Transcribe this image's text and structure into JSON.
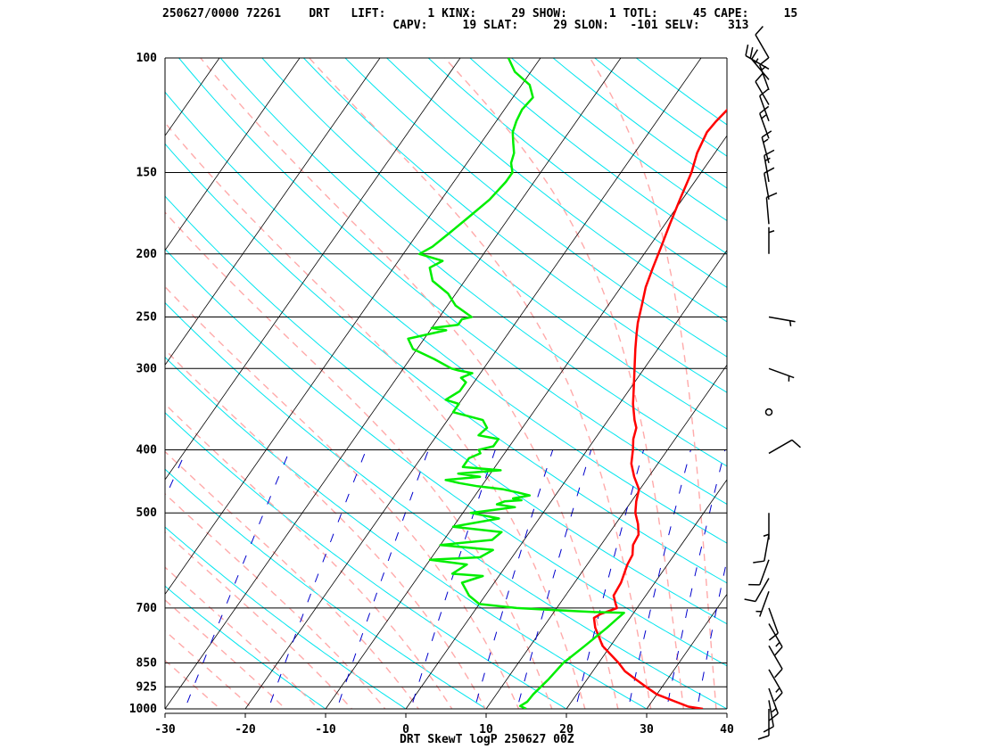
{
  "header": {
    "line1": "250627/0000 72261    DRT   LIFT:      1 KINX:     29 SHOW:      1 TOTL:     45 CAPE:     15",
    "line2": "                                 CAPV:     19 SLAT:     29 SLON:   -101 SELV:    313"
  },
  "footer": "DRT SkewT logP 250627 00Z",
  "chart_data": {
    "type": "line",
    "title": "DRT SkewT logP 250627 00Z",
    "xlabel": "",
    "ylabel": "",
    "x_ticks": [
      -30,
      -20,
      -10,
      0,
      10,
      20,
      30,
      40
    ],
    "xlim": [
      -30,
      40
    ],
    "ylim": [
      1000,
      100
    ],
    "y_scale": "log",
    "pressure_levels": [
      100,
      150,
      200,
      250,
      300,
      400,
      500,
      700,
      850,
      925,
      1000
    ],
    "colors": {
      "temperature": "#ff0000",
      "dewpoint": "#00ee00",
      "isotherm": "#000000",
      "dry_adiabat": "#00e5ee",
      "moist_adiabat": "#ffaaaa",
      "mixing_ratio": "#0000cc"
    },
    "series": [
      {
        "points": [
          [
            1000,
            37
          ],
          [
            992,
            35
          ],
          [
            975,
            33
          ],
          [
            950,
            30
          ],
          [
            925,
            28
          ],
          [
            900,
            26
          ],
          [
            875,
            24
          ],
          [
            850,
            22.5
          ],
          [
            800,
            19
          ],
          [
            750,
            16.5
          ],
          [
            725,
            15.5
          ],
          [
            715,
            16
          ],
          [
            705,
            17
          ],
          [
            700,
            17.5
          ],
          [
            690,
            17
          ],
          [
            670,
            16
          ],
          [
            640,
            15.8
          ],
          [
            600,
            15
          ],
          [
            580,
            14.8
          ],
          [
            560,
            14
          ],
          [
            540,
            13.8
          ],
          [
            520,
            12.8
          ],
          [
            500,
            11.5
          ],
          [
            480,
            10.6
          ],
          [
            460,
            9.9
          ],
          [
            440,
            8.2
          ],
          [
            420,
            6.7
          ],
          [
            400,
            5.7
          ],
          [
            385,
            4.8
          ],
          [
            370,
            4.2
          ],
          [
            360,
            3.3
          ],
          [
            340,
            1.7
          ],
          [
            320,
            0.3
          ],
          [
            300,
            -1.2
          ],
          [
            280,
            -2.8
          ],
          [
            265,
            -4
          ],
          [
            255,
            -4.8
          ],
          [
            240,
            -5.8
          ],
          [
            225,
            -6.9
          ],
          [
            210,
            -7.7
          ],
          [
            195,
            -8.5
          ],
          [
            180,
            -9.4
          ],
          [
            165,
            -10.3
          ],
          [
            150,
            -11.2
          ],
          [
            140,
            -12.2
          ],
          [
            130,
            -12.8
          ],
          [
            125,
            -12.6
          ],
          [
            120,
            -12.2
          ],
          [
            115,
            -12.0
          ],
          [
            110,
            -12.0
          ],
          [
            106,
            -12.5
          ],
          [
            103,
            -14.0
          ],
          [
            100,
            -15.5
          ]
        ]
      },
      {
        "points": [
          [
            1000,
            15
          ],
          [
            990,
            14
          ],
          [
            975,
            14.5
          ],
          [
            950,
            14.6
          ],
          [
            900,
            15.2
          ],
          [
            850,
            15.6
          ],
          [
            800,
            16.8
          ],
          [
            750,
            18
          ],
          [
            725,
            18.5
          ],
          [
            712,
            18.8
          ],
          [
            710,
            15
          ],
          [
            705,
            10
          ],
          [
            700,
            5
          ],
          [
            690,
            0
          ],
          [
            670,
            -2
          ],
          [
            640,
            -4
          ],
          [
            625,
            -2
          ],
          [
            620,
            -6
          ],
          [
            600,
            -5
          ],
          [
            590,
            -10
          ],
          [
            585,
            -4
          ],
          [
            570,
            -3
          ],
          [
            560,
            -10
          ],
          [
            550,
            -4
          ],
          [
            535,
            -3.5
          ],
          [
            525,
            -10
          ],
          [
            510,
            -5
          ],
          [
            500,
            -9
          ],
          [
            490,
            -4
          ],
          [
            485,
            -6.5
          ],
          [
            480,
            -5.8
          ],
          [
            478,
            -3.8
          ],
          [
            475,
            -5
          ],
          [
            470,
            -3.2
          ],
          [
            465,
            -5
          ],
          [
            460,
            -7
          ],
          [
            455,
            -10.5
          ],
          [
            450,
            -13
          ],
          [
            445,
            -15
          ],
          [
            440,
            -11
          ],
          [
            435,
            -14
          ],
          [
            430,
            -9
          ],
          [
            425,
            -14
          ],
          [
            420,
            -14
          ],
          [
            412,
            -14
          ],
          [
            405,
            -13
          ],
          [
            400,
            -13.5
          ],
          [
            395,
            -12
          ],
          [
            385,
            -12
          ],
          [
            380,
            -14.8
          ],
          [
            370,
            -14.4
          ],
          [
            360,
            -15.6
          ],
          [
            350,
            -20
          ],
          [
            340,
            -20
          ],
          [
            335,
            -22
          ],
          [
            325,
            -21
          ],
          [
            315,
            -21
          ],
          [
            310,
            -22
          ],
          [
            305,
            -21
          ],
          [
            302,
            -23
          ],
          [
            300,
            -24
          ],
          [
            290,
            -27
          ],
          [
            280,
            -30.5
          ],
          [
            270,
            -32
          ],
          [
            262,
            -28
          ],
          [
            260,
            -30
          ],
          [
            257,
            -27
          ],
          [
            252,
            -27
          ],
          [
            250,
            -26
          ],
          [
            240,
            -29
          ],
          [
            230,
            -31
          ],
          [
            220,
            -34
          ],
          [
            210,
            -35.5
          ],
          [
            205,
            -34.5
          ],
          [
            200,
            -38
          ],
          [
            195,
            -37
          ],
          [
            185,
            -36
          ],
          [
            175,
            -35
          ],
          [
            165,
            -34
          ],
          [
            155,
            -33.5
          ],
          [
            150,
            -33.5
          ],
          [
            145,
            -34.5
          ],
          [
            140,
            -35
          ],
          [
            135,
            -36
          ],
          [
            130,
            -37
          ],
          [
            125,
            -37.5
          ],
          [
            120,
            -37.8
          ],
          [
            115,
            -37.5
          ],
          [
            110,
            -39
          ],
          [
            105,
            -42
          ],
          [
            100,
            -44
          ]
        ]
      }
    ],
    "winds": [
      {
        "p": 100,
        "dir": 330,
        "kt": 10
      },
      {
        "p": 104,
        "dir": 300,
        "kt": 20
      },
      {
        "p": 108,
        "dir": 320,
        "kt": 15
      },
      {
        "p": 112,
        "dir": 340,
        "kt": 15
      },
      {
        "p": 118,
        "dir": 330,
        "kt": 10
      },
      {
        "p": 125,
        "dir": 340,
        "kt": 10
      },
      {
        "p": 133,
        "dir": 340,
        "kt": 15
      },
      {
        "p": 145,
        "dir": 345,
        "kt": 15
      },
      {
        "p": 155,
        "dir": 350,
        "kt": 15
      },
      {
        "p": 165,
        "dir": 350,
        "kt": 10
      },
      {
        "p": 180,
        "dir": 355,
        "kt": 10
      },
      {
        "p": 200,
        "dir": 0,
        "kt": 5
      },
      {
        "p": 250,
        "dir": 100,
        "kt": 5
      },
      {
        "p": 300,
        "dir": 110,
        "kt": 5
      },
      {
        "p": 350,
        "dir": 0,
        "kt": 0
      },
      {
        "p": 405,
        "dir": 60,
        "kt": 10
      },
      {
        "p": 500,
        "dir": 180,
        "kt": 5
      },
      {
        "p": 540,
        "dir": 190,
        "kt": 10
      },
      {
        "p": 590,
        "dir": 200,
        "kt": 10
      },
      {
        "p": 630,
        "dir": 210,
        "kt": 10
      },
      {
        "p": 660,
        "dir": 200,
        "kt": 5
      },
      {
        "p": 700,
        "dir": 160,
        "kt": 10
      },
      {
        "p": 740,
        "dir": 150,
        "kt": 15
      },
      {
        "p": 800,
        "dir": 150,
        "kt": 10
      },
      {
        "p": 870,
        "dir": 150,
        "kt": 15
      },
      {
        "p": 930,
        "dir": 160,
        "kt": 15
      },
      {
        "p": 970,
        "dir": 170,
        "kt": 10
      },
      {
        "p": 1000,
        "dir": 180,
        "kt": 10
      }
    ]
  }
}
